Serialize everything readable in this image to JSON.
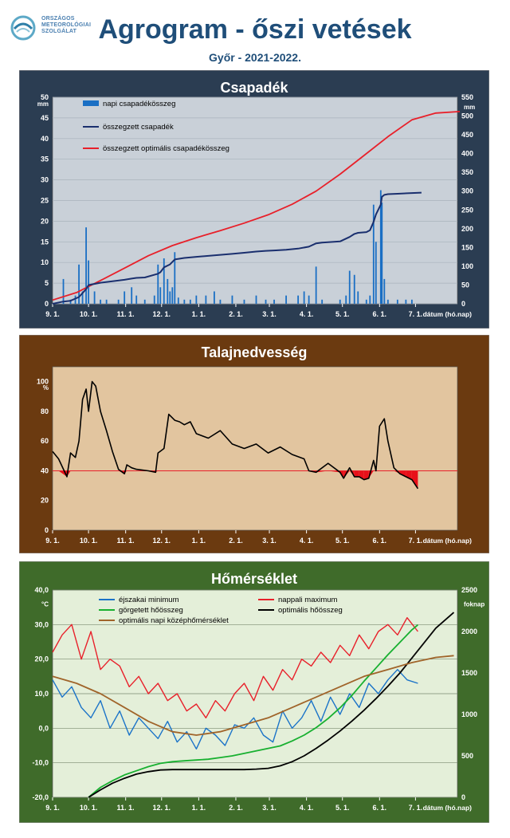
{
  "header": {
    "logo_lines": [
      "ORSZÁGOS",
      "METEOROLÓGIAI",
      "SZOLGÁLAT"
    ],
    "title": "Agrogram - őszi vetések",
    "subtitle": "Győr - 2021-2022."
  },
  "colors": {
    "panel1_bg": "#2b3d52",
    "panel1_plot": "#c9d0d8",
    "panel2_bg": "#6b3a10",
    "panel2_plot": "#e2c59f",
    "panel3_bg": "#3f6b2a",
    "panel3_plot": "#e4efd9",
    "rain_bar": "#1a6fc4",
    "rain_cum": "#1a2f6e",
    "rain_opt": "#e8202a",
    "soil_line": "#000000",
    "soil_threshold": "#e8202a",
    "tmin": "#1a73c8",
    "tmax": "#e8202a",
    "gdd": "#18b030",
    "gdd_opt": "#000000",
    "topt": "#a0642a"
  },
  "chart_data": [
    {
      "type": "bar",
      "title": "Csapadék",
      "ylabel_left": "mm",
      "ylabel_right": "mm",
      "xlabel": "dátum (hó.nap)",
      "x_ticks": [
        "9. 1.",
        "10. 1.",
        "11. 1.",
        "12. 1.",
        "1. 1.",
        "2. 1.",
        "3. 1.",
        "4. 1.",
        "5. 1.",
        "6. 1.",
        "7. 1."
      ],
      "x_tick_days": [
        0,
        30,
        61,
        91,
        122,
        153,
        181,
        212,
        242,
        273,
        303
      ],
      "ylim_left": [
        0,
        50
      ],
      "y_ticks_left": [
        0,
        5,
        10,
        15,
        20,
        25,
        30,
        35,
        40,
        45,
        50
      ],
      "ylim_right": [
        0,
        550
      ],
      "y_ticks_right": [
        0,
        50,
        100,
        150,
        200,
        250,
        300,
        350,
        400,
        450,
        500,
        550
      ],
      "grid": true,
      "legend": "top-left",
      "series": [
        {
          "name": "napi csapadékösszeg",
          "type": "bar",
          "axis": "left",
          "x": [
            9,
            15,
            19,
            22,
            25,
            28,
            30,
            35,
            40,
            45,
            55,
            60,
            66,
            70,
            77,
            85,
            88,
            90,
            93,
            96,
            98,
            100,
            102,
            105,
            110,
            115,
            120,
            128,
            135,
            140,
            150,
            160,
            170,
            178,
            185,
            195,
            205,
            210,
            214,
            220,
            225,
            240,
            245,
            248,
            252,
            255,
            262,
            265,
            268,
            270,
            274,
            275,
            277,
            280,
            288,
            295,
            300
          ],
          "values": [
            6,
            1,
            2,
            9.5,
            3,
            18.5,
            10.5,
            3,
            1,
            1,
            1,
            3,
            4,
            2,
            1,
            2,
            9.5,
            4,
            11,
            6,
            3,
            4,
            12.5,
            1.5,
            1,
            1,
            2,
            2,
            3,
            1,
            2,
            1,
            2,
            1,
            1,
            2,
            2,
            3,
            2,
            9,
            1,
            1,
            2,
            8,
            7,
            3,
            1,
            2,
            24,
            15,
            27.5,
            24.5,
            6,
            1,
            1,
            1,
            1
          ]
        },
        {
          "name": "összegzett csapadék",
          "type": "line",
          "axis": "right",
          "x": [
            0,
            9,
            15,
            22,
            28,
            30,
            40,
            60,
            66,
            70,
            77,
            88,
            90,
            93,
            98,
            102,
            110,
            120,
            135,
            150,
            160,
            170,
            178,
            185,
            195,
            205,
            214,
            220,
            225,
            240,
            248,
            252,
            255,
            262,
            265,
            268,
            270,
            274,
            275,
            277,
            280,
            288,
            300,
            308
          ],
          "values": [
            0,
            6,
            8,
            18,
            39,
            50,
            56,
            64,
            67,
            69,
            70,
            80,
            84,
            97,
            105,
            118,
            122,
            125,
            129,
            133,
            136,
            139,
            141,
            142,
            144,
            147,
            152,
            161,
            163,
            166,
            178,
            186,
            189,
            191,
            196,
            218,
            238,
            264,
            285,
            290,
            292,
            293,
            295,
            296
          ]
        },
        {
          "name": "összegzett optimális  csapadékösszeg",
          "type": "line",
          "axis": "right",
          "x": [
            0,
            20,
            40,
            60,
            80,
            100,
            120,
            140,
            160,
            180,
            200,
            220,
            240,
            260,
            280,
            300,
            320,
            340
          ],
          "values": [
            10,
            30,
            62,
            95,
            128,
            155,
            176,
            195,
            215,
            237,
            265,
            300,
            345,
            395,
            445,
            490,
            508,
            512
          ]
        }
      ]
    },
    {
      "type": "line",
      "title": "Talajnedvesség",
      "ylabel": "%",
      "xlabel": "dátum (hó.nap)",
      "x_ticks": [
        "9. 1.",
        "10. 1.",
        "11. 1.",
        "12. 1.",
        "1. 1.",
        "2. 1.",
        "3. 1.",
        "4. 1.",
        "5. 1.",
        "6. 1.",
        "7. 1."
      ],
      "x_tick_days": [
        0,
        30,
        61,
        91,
        122,
        153,
        181,
        212,
        242,
        273,
        303
      ],
      "ylim": [
        0,
        110
      ],
      "y_ticks": [
        0,
        20,
        40,
        60,
        80,
        100
      ],
      "threshold": 40,
      "grid": false,
      "series": [
        {
          "name": "talajnedvesség",
          "x": [
            0,
            5,
            12,
            15,
            19,
            22,
            25,
            28,
            30,
            33,
            36,
            40,
            45,
            50,
            55,
            60,
            62,
            66,
            70,
            80,
            86,
            88,
            93,
            97,
            102,
            106,
            110,
            115,
            120,
            130,
            140,
            150,
            160,
            170,
            180,
            190,
            200,
            210,
            214,
            220,
            230,
            240,
            243,
            248,
            252,
            256,
            260,
            264,
            268,
            270,
            273,
            277,
            280,
            285,
            290,
            295,
            300,
            305
          ],
          "values": [
            53,
            48,
            36,
            52,
            49,
            60,
            88,
            95,
            80,
            100,
            97,
            80,
            67,
            53,
            41,
            38,
            44,
            42,
            41,
            40,
            39,
            52,
            55,
            78,
            74,
            73,
            71,
            73,
            65,
            62,
            67,
            58,
            55,
            58,
            52,
            56,
            51,
            48,
            40,
            39,
            45,
            39,
            35,
            42,
            36,
            36,
            34,
            35,
            47,
            40,
            70,
            75,
            60,
            42,
            38,
            36,
            34,
            28
          ]
        }
      ]
    },
    {
      "type": "line",
      "title": "Hőmérséklet",
      "ylabel_left": "°C",
      "ylabel_right": "foknap",
      "xlabel": "dátum (hó.nap)",
      "x_ticks": [
        "9. 1.",
        "10. 1.",
        "11. 1.",
        "12. 1.",
        "1. 1.",
        "2. 1.",
        "3. 1.",
        "4. 1.",
        "5. 1.",
        "6. 1.",
        "7. 1."
      ],
      "x_tick_days": [
        0,
        30,
        61,
        91,
        122,
        153,
        181,
        212,
        242,
        273,
        303
      ],
      "ylim_left": [
        -20,
        40
      ],
      "y_ticks_left": [
        "-20,0",
        "-10,0",
        "0,0",
        "10,0",
        "20,0",
        "30,0",
        "40,0"
      ],
      "ylim_right": [
        0,
        2500
      ],
      "y_ticks_right": [
        0,
        500,
        1000,
        1500,
        2000,
        2500
      ],
      "grid": true,
      "legend": "top",
      "series": [
        {
          "name": "éjszakai minimum",
          "axis": "left",
          "x": [
            0,
            8,
            16,
            24,
            32,
            40,
            48,
            56,
            64,
            72,
            80,
            88,
            96,
            104,
            112,
            120,
            128,
            136,
            144,
            152,
            160,
            168,
            176,
            184,
            192,
            200,
            208,
            216,
            224,
            232,
            240,
            248,
            256,
            264,
            272,
            280,
            288,
            296,
            305
          ],
          "values": [
            14,
            9,
            12,
            6,
            3,
            8,
            0,
            5,
            -2,
            3,
            0,
            -3,
            2,
            -4,
            -1,
            -6,
            0,
            -2,
            -5,
            1,
            0,
            3,
            -2,
            -4,
            5,
            0,
            3,
            8,
            2,
            9,
            4,
            10,
            6,
            13,
            10,
            14,
            17,
            14,
            13
          ]
        },
        {
          "name": "nappali maximum",
          "axis": "left",
          "x": [
            0,
            8,
            16,
            24,
            32,
            40,
            48,
            56,
            64,
            72,
            80,
            88,
            96,
            104,
            112,
            120,
            128,
            136,
            144,
            152,
            160,
            168,
            176,
            184,
            192,
            200,
            208,
            216,
            224,
            232,
            240,
            248,
            256,
            264,
            272,
            280,
            288,
            296,
            305
          ],
          "values": [
            22,
            27,
            30,
            20,
            28,
            17,
            20,
            18,
            12,
            15,
            10,
            13,
            8,
            10,
            5,
            7,
            3,
            8,
            5,
            10,
            13,
            8,
            15,
            11,
            17,
            14,
            20,
            18,
            22,
            19,
            24,
            21,
            27,
            23,
            28,
            30,
            27,
            32,
            28
          ]
        },
        {
          "name": "görgetett hőösszeg",
          "axis": "right",
          "x": [
            30,
            40,
            50,
            60,
            70,
            80,
            90,
            100,
            110,
            120,
            130,
            140,
            150,
            160,
            170,
            180,
            190,
            200,
            210,
            220,
            230,
            240,
            250,
            260,
            270,
            280,
            290,
            300,
            305
          ],
          "values": [
            0,
            120,
            200,
            270,
            320,
            370,
            410,
            430,
            440,
            450,
            460,
            480,
            500,
            530,
            560,
            590,
            620,
            680,
            750,
            840,
            950,
            1080,
            1230,
            1400,
            1560,
            1720,
            1870,
            2020,
            2080
          ]
        },
        {
          "name": "optimális hőösszeg",
          "axis": "right",
          "x": [
            30,
            40,
            50,
            60,
            70,
            80,
            90,
            100,
            110,
            120,
            130,
            140,
            150,
            160,
            170,
            180,
            190,
            200,
            210,
            220,
            230,
            240,
            250,
            260,
            270,
            280,
            290,
            300,
            310,
            320,
            335
          ],
          "values": [
            0,
            90,
            170,
            230,
            280,
            310,
            330,
            335,
            335,
            335,
            335,
            335,
            335,
            335,
            340,
            350,
            380,
            430,
            500,
            590,
            690,
            800,
            920,
            1050,
            1190,
            1340,
            1500,
            1680,
            1860,
            2040,
            2230
          ]
        },
        {
          "name": "optimális napi középhőmérséklet",
          "axis": "left",
          "x": [
            0,
            20,
            40,
            60,
            80,
            100,
            120,
            140,
            160,
            180,
            200,
            220,
            240,
            260,
            280,
            300,
            320,
            335
          ],
          "values": [
            15,
            13,
            10,
            6,
            2,
            -1,
            -2,
            -1,
            1,
            3,
            6,
            9,
            12,
            15,
            17,
            19,
            20.5,
            21
          ]
        }
      ]
    }
  ]
}
